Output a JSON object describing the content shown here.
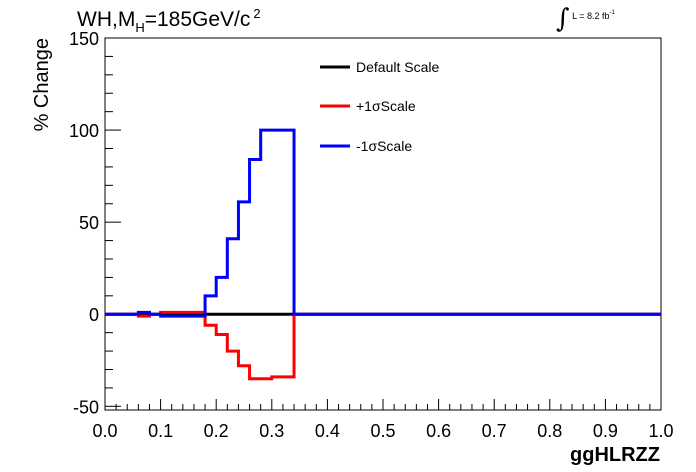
{
  "title": {
    "prefix": "WH,M",
    "subscript": "H",
    "main": "=185GeV/c",
    "superscript": "2"
  },
  "lumi": {
    "integral": "∫",
    "text": "L = 8.2 fb",
    "superscript": "-1"
  },
  "chart_data": {
    "type": "line",
    "xlabel": "ggHLRZZ",
    "ylabel": "% Change",
    "xlim": [
      0.0,
      1.0
    ],
    "ylim": [
      -52,
      150
    ],
    "x_ticks": [
      "0.0",
      "0.1",
      "0.2",
      "0.3",
      "0.4",
      "0.5",
      "0.6",
      "0.7",
      "0.8",
      "0.9",
      "1.0"
    ],
    "y_ticks": [
      "-50",
      "0",
      "50",
      "100",
      "150"
    ],
    "legend_position": "top-center",
    "bin_edges": [
      0.0,
      0.02,
      0.04,
      0.06,
      0.08,
      0.1,
      0.12,
      0.14,
      0.16,
      0.18,
      0.2,
      0.22,
      0.24,
      0.26,
      0.28,
      0.3,
      0.32,
      0.34,
      1.0
    ],
    "series": [
      {
        "name": "Default Scale",
        "color": "#000000",
        "values": [
          0,
          0,
          0,
          0,
          0,
          0,
          0,
          0,
          0,
          0,
          0,
          0,
          0,
          0,
          0,
          0,
          0,
          0
        ]
      },
      {
        "name": "+1σScale",
        "color": "#ff0000",
        "values": [
          0,
          0,
          0,
          -1,
          0,
          1,
          1,
          1,
          1,
          -6,
          -11,
          -20,
          -28,
          -35,
          -35,
          -34,
          -34,
          0
        ]
      },
      {
        "name": "-1σScale",
        "color": "#0000ff",
        "values": [
          0,
          0,
          0,
          1,
          0,
          -1,
          -1,
          -1,
          -1,
          10,
          20,
          41,
          61,
          84,
          100,
          100,
          100,
          0
        ]
      }
    ]
  }
}
